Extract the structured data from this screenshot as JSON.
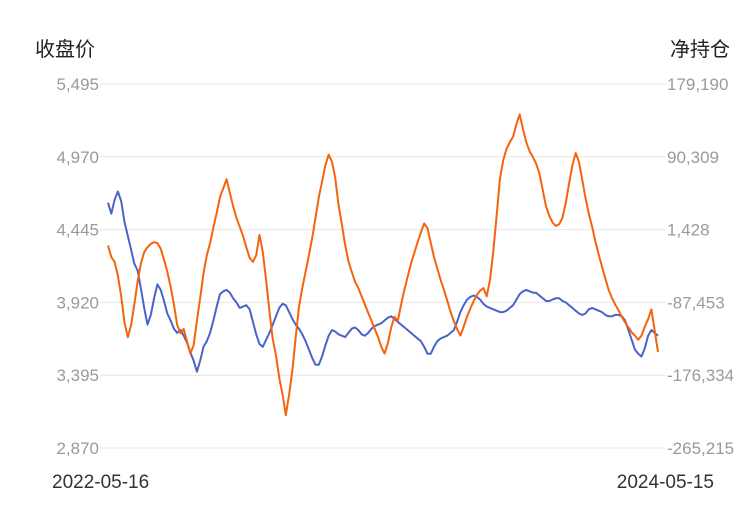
{
  "chart_data": {
    "type": "line",
    "left_axis_title": "收盘价",
    "right_axis_title": "净持仓",
    "left_ticks": [
      "5,495",
      "4,970",
      "4,445",
      "3,920",
      "3,395",
      "2,870"
    ],
    "right_ticks": [
      "179,190",
      "90,309",
      "1,428",
      "-87,453",
      "-176,334",
      "-265,215"
    ],
    "ylim_left": [
      2870,
      5495
    ],
    "ylim_right": [
      -265215,
      179190
    ],
    "x_start_label": "2022-05-16",
    "x_end_label": "2024-05-15",
    "grid": true,
    "series": [
      {
        "axis": "left",
        "color": "#4a63c8",
        "values": [
          4640,
          4560,
          4660,
          4720,
          4650,
          4500,
          4400,
          4300,
          4200,
          4150,
          4020,
          3880,
          3760,
          3830,
          3950,
          4050,
          4010,
          3930,
          3840,
          3790,
          3730,
          3700,
          3720,
          3680,
          3630,
          3560,
          3500,
          3420,
          3500,
          3600,
          3640,
          3700,
          3790,
          3890,
          3980,
          4000,
          4010,
          3990,
          3950,
          3920,
          3880,
          3890,
          3900,
          3870,
          3780,
          3690,
          3620,
          3600,
          3650,
          3700,
          3760,
          3820,
          3880,
          3910,
          3900,
          3850,
          3800,
          3760,
          3730,
          3690,
          3640,
          3580,
          3520,
          3470,
          3470,
          3530,
          3610,
          3680,
          3720,
          3710,
          3690,
          3680,
          3670,
          3700,
          3730,
          3740,
          3720,
          3690,
          3680,
          3700,
          3730,
          3750,
          3760,
          3770,
          3790,
          3810,
          3820,
          3800,
          3780,
          3760,
          3740,
          3720,
          3700,
          3680,
          3660,
          3640,
          3600,
          3550,
          3550,
          3600,
          3640,
          3660,
          3670,
          3680,
          3700,
          3720,
          3780,
          3850,
          3900,
          3940,
          3960,
          3970,
          3960,
          3940,
          3910,
          3890,
          3880,
          3870,
          3860,
          3850,
          3850,
          3860,
          3880,
          3900,
          3940,
          3980,
          4000,
          4010,
          4000,
          3990,
          3990,
          3970,
          3950,
          3930,
          3930,
          3940,
          3950,
          3950,
          3930,
          3920,
          3900,
          3880,
          3860,
          3840,
          3830,
          3840,
          3870,
          3880,
          3870,
          3860,
          3850,
          3830,
          3820,
          3820,
          3830,
          3830,
          3820,
          3790,
          3720,
          3650,
          3580,
          3550,
          3530,
          3590,
          3680,
          3720,
          3700,
          3680
        ]
      },
      {
        "axis": "right",
        "color": "#f5630e",
        "values": [
          -18000,
          -32000,
          -38000,
          -55000,
          -80000,
          -112000,
          -130000,
          -115000,
          -90000,
          -62000,
          -40000,
          -26000,
          -20000,
          -16000,
          -14000,
          -15000,
          -22000,
          -35000,
          -50000,
          -68000,
          -90000,
          -115000,
          -125000,
          -120000,
          -135000,
          -150000,
          -140000,
          -110000,
          -82000,
          -52000,
          -30000,
          -15000,
          4000,
          22000,
          41000,
          52000,
          63000,
          46000,
          30000,
          16000,
          5000,
          -6000,
          -20000,
          -33000,
          -38000,
          -30000,
          -5000,
          -26000,
          -60000,
          -98000,
          -132000,
          -152000,
          -180000,
          -200000,
          -225000,
          -200000,
          -170000,
          -130000,
          -93000,
          -70000,
          -50000,
          -30000,
          -9000,
          16000,
          41000,
          60000,
          80000,
          93000,
          84000,
          65000,
          32000,
          8000,
          -17000,
          -37000,
          -50000,
          -62000,
          -70000,
          -80000,
          -90000,
          -100000,
          -110000,
          -120000,
          -130000,
          -142000,
          -150000,
          -137000,
          -118000,
          -105000,
          -110000,
          -90000,
          -72000,
          -56000,
          -40000,
          -27000,
          -14000,
          -2000,
          9000,
          3000,
          -15000,
          -32000,
          -46000,
          -60000,
          -72000,
          -85000,
          -99000,
          -110000,
          -120000,
          -128000,
          -117000,
          -105000,
          -95000,
          -86000,
          -78000,
          -73000,
          -70000,
          -80000,
          -60000,
          -25000,
          18000,
          63000,
          86000,
          100000,
          108000,
          115000,
          130000,
          142000,
          124000,
          108000,
          97000,
          90000,
          82000,
          70000,
          50000,
          30000,
          18000,
          10000,
          6000,
          8000,
          16000,
          34000,
          58000,
          80000,
          95000,
          84000,
          62000,
          40000,
          21000,
          5000,
          -13000,
          -29000,
          -44000,
          -58000,
          -72000,
          -82000,
          -90000,
          -97000,
          -105000,
          -112000,
          -118000,
          -124000,
          -128000,
          -133000,
          -128000,
          -117000,
          -108000,
          -96000,
          -122000,
          -148000
        ]
      }
    ]
  }
}
